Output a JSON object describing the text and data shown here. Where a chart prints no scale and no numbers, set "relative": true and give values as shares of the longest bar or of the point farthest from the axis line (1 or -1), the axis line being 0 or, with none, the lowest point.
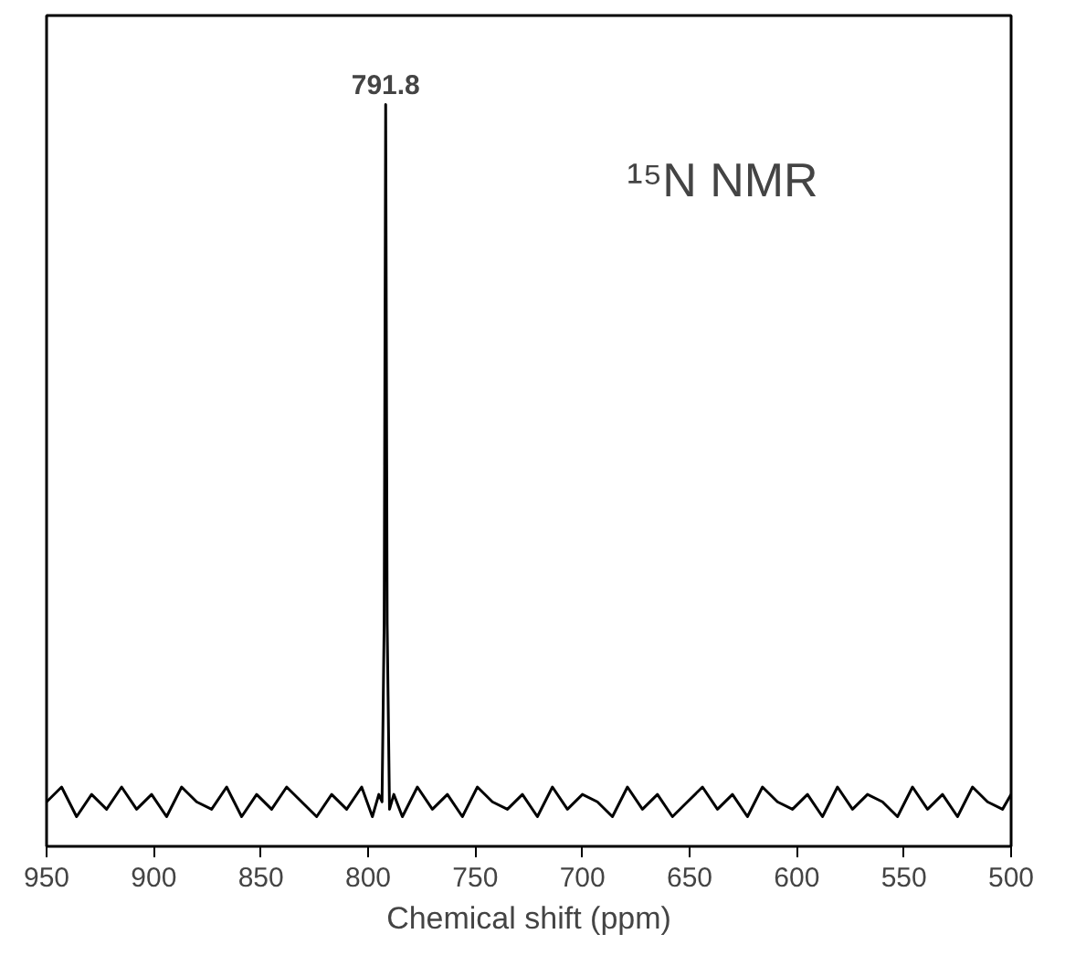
{
  "chart_data": {
    "type": "line",
    "relative": true,
    "xlabel": "Chemical shift (ppm)",
    "xlim": [
      950,
      500
    ],
    "xticks": [
      950,
      900,
      850,
      800,
      750,
      700,
      650,
      600,
      550,
      500
    ],
    "tick_labels": "x",
    "grid": false,
    "marker": "none",
    "line_style": "solid",
    "annotations": [
      {
        "text": "791.8",
        "x": 791.8,
        "y": 1
      },
      "¹⁵N NMR"
    ],
    "series": [
      {
        "color": "#000000",
        "x": [
          950,
          943,
          936,
          929,
          922,
          915,
          908,
          901,
          894,
          887,
          880,
          873,
          866,
          859,
          852,
          845,
          838,
          831,
          824,
          817,
          810,
          803,
          798,
          795,
          793.5,
          792.5,
          791.8,
          791.1,
          790,
          788,
          784,
          777,
          770,
          763,
          756,
          749,
          742,
          735,
          728,
          721,
          714,
          707,
          700,
          693,
          686,
          679,
          672,
          665,
          658,
          651,
          644,
          637,
          630,
          623,
          616,
          609,
          602,
          595,
          588,
          581,
          574,
          567,
          560,
          553,
          546,
          539,
          532,
          525,
          518,
          511,
          504,
          500
        ],
        "values": [
          0.06,
          0.08,
          0.04,
          0.07,
          0.05,
          0.08,
          0.05,
          0.07,
          0.04,
          0.08,
          0.06,
          0.05,
          0.08,
          0.04,
          0.07,
          0.05,
          0.08,
          0.06,
          0.04,
          0.07,
          0.05,
          0.08,
          0.04,
          0.07,
          0.06,
          0.3,
          1,
          0.3,
          0.05,
          0.07,
          0.04,
          0.08,
          0.05,
          0.07,
          0.04,
          0.08,
          0.06,
          0.05,
          0.07,
          0.04,
          0.08,
          0.05,
          0.07,
          0.06,
          0.04,
          0.08,
          0.05,
          0.07,
          0.04,
          0.06,
          0.08,
          0.05,
          0.07,
          0.04,
          0.08,
          0.06,
          0.05,
          0.07,
          0.04,
          0.08,
          0.05,
          0.07,
          0.06,
          0.04,
          0.08,
          0.05,
          0.07,
          0.04,
          0.08,
          0.06,
          0.05,
          0.07
        ]
      }
    ]
  }
}
